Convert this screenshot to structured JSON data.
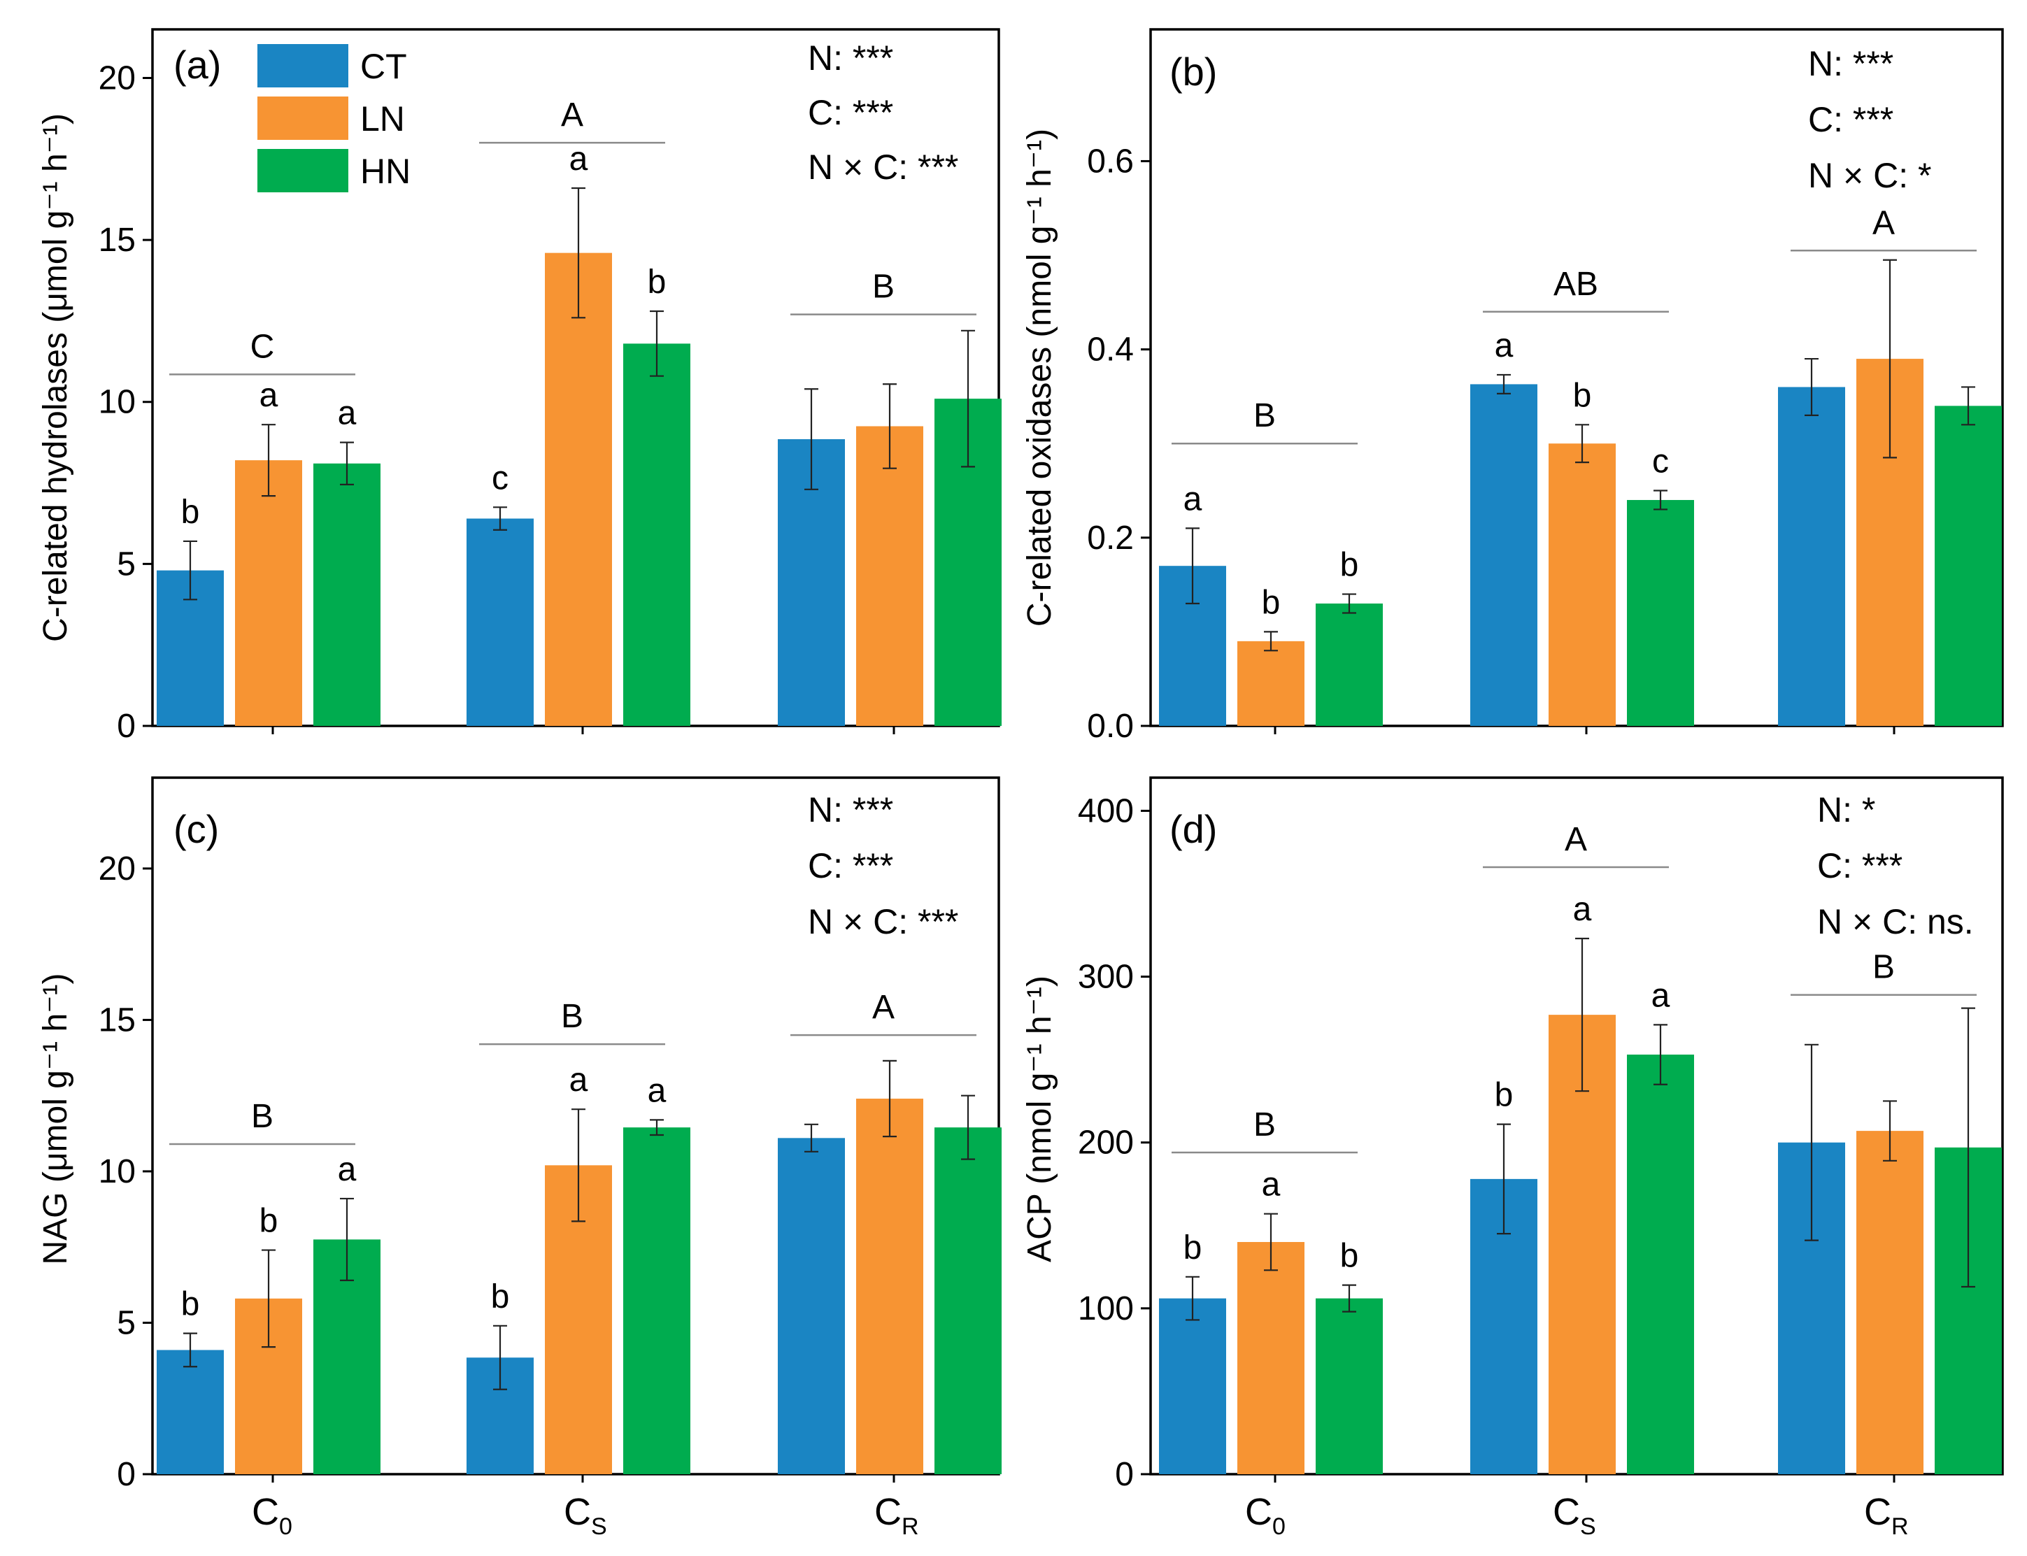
{
  "colors": {
    "CT": "#1a85c3",
    "LN": "#f79433",
    "HN": "#00ac4f"
  },
  "legend": [
    {
      "name": "CT",
      "color": "#1a85c3"
    },
    {
      "name": "LN",
      "color": "#f79433"
    },
    {
      "name": "HN",
      "color": "#00ac4f"
    }
  ],
  "x_categories": [
    {
      "main": "C",
      "sub": "0"
    },
    {
      "main": "C",
      "sub": "S"
    },
    {
      "main": "C",
      "sub": "R"
    }
  ],
  "chart_data": [
    {
      "type": "bar",
      "panel": "(a)",
      "ylabel": "C-related hydrolases (μmol g⁻¹ h⁻¹)",
      "ylim": [
        0,
        21.5
      ],
      "yticks": [
        0,
        5,
        10,
        15,
        20
      ],
      "tick_decimals": 0,
      "categories": [
        "C0",
        "CS",
        "CR"
      ],
      "series": [
        {
          "name": "CT",
          "values": [
            4.8,
            6.4,
            8.85
          ],
          "errors": [
            0.9,
            0.35,
            1.55
          ],
          "letters": [
            "b",
            "c",
            ""
          ]
        },
        {
          "name": "LN",
          "values": [
            8.2,
            14.6,
            9.25
          ],
          "errors": [
            1.1,
            2.0,
            1.3
          ],
          "letters": [
            "a",
            "a",
            ""
          ]
        },
        {
          "name": "HN",
          "values": [
            8.1,
            11.8,
            10.1
          ],
          "errors": [
            0.65,
            1.0,
            2.1
          ],
          "letters": [
            "a",
            "b",
            ""
          ]
        }
      ],
      "group_letters": [
        "C",
        "A",
        "B"
      ],
      "group_line_values": [
        10.85,
        18.0,
        12.7
      ],
      "stats": [
        "N: ***",
        "C: ***",
        "N × C: ***"
      ]
    },
    {
      "type": "bar",
      "panel": "(b)",
      "ylabel": "C-related oxidases (nmol g⁻¹ h⁻¹)",
      "ylim": [
        0,
        0.74
      ],
      "yticks": [
        0.0,
        0.2,
        0.4,
        0.6
      ],
      "tick_decimals": 1,
      "categories": [
        "C0",
        "CS",
        "CR"
      ],
      "series": [
        {
          "name": "CT",
          "values": [
            0.17,
            0.363,
            0.36
          ],
          "errors": [
            0.04,
            0.01,
            0.03
          ],
          "letters": [
            "a",
            "a",
            ""
          ]
        },
        {
          "name": "LN",
          "values": [
            0.09,
            0.3,
            0.39
          ],
          "errors": [
            0.01,
            0.02,
            0.105
          ],
          "letters": [
            "b",
            "b",
            ""
          ]
        },
        {
          "name": "HN",
          "values": [
            0.13,
            0.24,
            0.34
          ],
          "errors": [
            0.01,
            0.01,
            0.02
          ],
          "letters": [
            "b",
            "c",
            ""
          ]
        }
      ],
      "group_letters": [
        "B",
        "AB",
        "A"
      ],
      "group_line_values": [
        0.3,
        0.44,
        0.505
      ],
      "stats": [
        "N: ***",
        "C: ***",
        "N × C: *"
      ]
    },
    {
      "type": "bar",
      "panel": "(c)",
      "ylabel": "NAG (μmol g⁻¹ h⁻¹)",
      "ylim": [
        0,
        23
      ],
      "yticks": [
        0,
        5,
        10,
        15,
        20
      ],
      "tick_decimals": 0,
      "categories": [
        "C0",
        "CS",
        "CR"
      ],
      "series": [
        {
          "name": "CT",
          "values": [
            4.1,
            3.85,
            11.1
          ],
          "errors": [
            0.55,
            1.05,
            0.45
          ],
          "letters": [
            "b",
            "b",
            ""
          ]
        },
        {
          "name": "LN",
          "values": [
            5.8,
            10.2,
            12.4
          ],
          "errors": [
            1.6,
            1.85,
            1.25
          ],
          "letters": [
            "b",
            "a",
            ""
          ]
        },
        {
          "name": "HN",
          "values": [
            7.75,
            11.45,
            11.45
          ],
          "errors": [
            1.35,
            0.25,
            1.05
          ],
          "letters": [
            "a",
            "a",
            ""
          ]
        }
      ],
      "group_letters": [
        "B",
        "B",
        "A"
      ],
      "group_line_values": [
        10.9,
        14.2,
        14.5
      ],
      "stats": [
        "N: ***",
        "C: ***",
        "N × C: ***"
      ]
    },
    {
      "type": "bar",
      "panel": "(d)",
      "ylabel": "ACP (nmol g⁻¹ h⁻¹)",
      "ylim": [
        0,
        420
      ],
      "yticks": [
        0,
        100,
        200,
        300,
        400
      ],
      "tick_decimals": 0,
      "categories": [
        "C0",
        "CS",
        "CR"
      ],
      "series": [
        {
          "name": "CT",
          "values": [
            106,
            178,
            200
          ],
          "errors": [
            13,
            33,
            59
          ],
          "letters": [
            "b",
            "b",
            ""
          ]
        },
        {
          "name": "LN",
          "values": [
            140,
            277,
            207
          ],
          "errors": [
            17,
            46,
            18
          ],
          "letters": [
            "a",
            "a",
            ""
          ]
        },
        {
          "name": "HN",
          "values": [
            106,
            253,
            197
          ],
          "errors": [
            8,
            18,
            84
          ],
          "letters": [
            "b",
            "a",
            ""
          ]
        }
      ],
      "group_letters": [
        "B",
        "A",
        "B"
      ],
      "group_line_values": [
        194,
        366,
        289
      ],
      "stats": [
        "N: *",
        "C: ***",
        "N × C: ns."
      ]
    }
  ]
}
